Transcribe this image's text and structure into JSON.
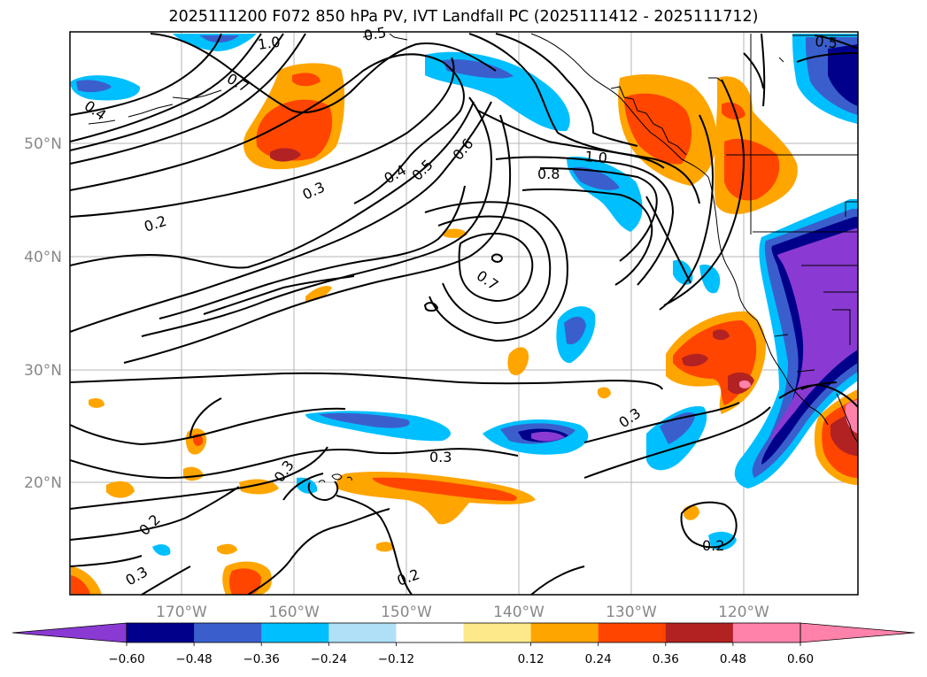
{
  "title": "2025111200 F072 850 hPa PV, IVT Landfall PC (2025111412 - 2025111712)",
  "lat_labels": [
    "50°N",
    "40°N",
    "30°N",
    "20°N"
  ],
  "lon_labels": [
    "170°W",
    "160°W",
    "150°W",
    "140°W",
    "130°W",
    "120°W"
  ],
  "contour_labels": [
    "1.0",
    "0.7",
    "0.4",
    "0.5",
    "0.3",
    "0.4",
    "0.5",
    "0.6",
    "0.2",
    "1.0",
    "0.8",
    "0.7",
    "0.3",
    "0.3",
    "0.3",
    "0.2",
    "0.3",
    "0.2",
    "0.2",
    "0.5"
  ],
  "colorbar": {
    "ticks": [
      "−0.60",
      "−0.48",
      "−0.36",
      "−0.24",
      "−0.12",
      "0.12",
      "0.24",
      "0.36",
      "0.48",
      "0.60"
    ],
    "colors": [
      "#8a3ad2",
      "#00008b",
      "#3a5fcd",
      "#00bfff",
      "#b0e0f8",
      "#ffffff",
      "#fde98a",
      "#ffa500",
      "#ff4500",
      "#b22222",
      "#ff82ab",
      "#ff82ab"
    ]
  }
}
